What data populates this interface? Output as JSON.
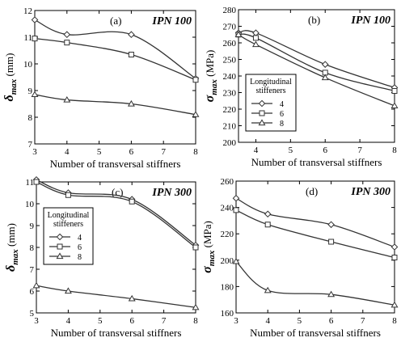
{
  "chart_data": [
    {
      "type": "line",
      "panel_label": "(a)",
      "title": "IPN 100",
      "xlabel": "Number of transversal stiffners",
      "ylabel_sym": "δ",
      "ylabel_sub": "max",
      "ylabel_rest": " (mm)",
      "xlim": [
        3,
        8
      ],
      "ylim": [
        7,
        12
      ],
      "xticks": [
        "3",
        "4",
        "5",
        "6",
        "7",
        "8"
      ],
      "yticks": [
        "7",
        "8",
        "9",
        "10",
        "11",
        "12"
      ],
      "series": [
        {
          "marker": "diamond",
          "x": [
            3,
            4,
            6,
            8
          ],
          "y": [
            11.65,
            11.1,
            11.1,
            9.45
          ]
        },
        {
          "marker": "square",
          "x": [
            3,
            4,
            6,
            8
          ],
          "y": [
            10.95,
            10.8,
            10.35,
            9.4
          ]
        },
        {
          "marker": "triangle",
          "x": [
            3,
            4,
            6,
            8
          ],
          "y": [
            8.85,
            8.65,
            8.5,
            8.1
          ]
        }
      ]
    },
    {
      "type": "line",
      "panel_label": "(b)",
      "title": "IPN 100",
      "xlabel": "Number of transversal stiffners",
      "ylabel_sym": "σ",
      "ylabel_sub": "max",
      "ylabel_rest": " (MPa)",
      "xlim": [
        3.5,
        8
      ],
      "ylim": [
        200,
        280
      ],
      "xticks": [
        "4",
        "5",
        "6",
        "7",
        "8"
      ],
      "yticks": [
        "200",
        "210",
        "220",
        "230",
        "240",
        "250",
        "260",
        "270",
        "280"
      ],
      "legend": {
        "title_lines": [
          "Longitudinal",
          "stiffeners"
        ],
        "items": [
          "4",
          "6",
          "8"
        ],
        "placement": "left-middle"
      },
      "series": [
        {
          "name": "4",
          "marker": "diamond",
          "x": [
            3.5,
            4,
            6,
            8
          ],
          "y": [
            266,
            266,
            247,
            233
          ]
        },
        {
          "name": "6",
          "marker": "square",
          "x": [
            3.5,
            4,
            6,
            8
          ],
          "y": [
            265,
            263,
            242,
            231
          ]
        },
        {
          "name": "8",
          "marker": "triangle",
          "x": [
            3.5,
            4,
            6,
            8
          ],
          "y": [
            265,
            259,
            239,
            222
          ]
        }
      ]
    },
    {
      "type": "line",
      "panel_label": "(c)",
      "title": "IPN 300",
      "xlabel": "Number of transversal stiffners",
      "ylabel_sym": "δ",
      "ylabel_sub": "max",
      "ylabel_rest": " (mm)",
      "xlim": [
        3,
        8
      ],
      "ylim": [
        5,
        11
      ],
      "xticks": [
        "3",
        "4",
        "5",
        "6",
        "7",
        "8"
      ],
      "yticks": [
        "5",
        "6",
        "7",
        "8",
        "9",
        "10",
        "11"
      ],
      "legend": {
        "title_lines": [
          "Longitudinal",
          "stiffeners"
        ],
        "items": [
          "4",
          "6",
          "8"
        ],
        "placement": "upper-left"
      },
      "series": [
        {
          "name": "4",
          "marker": "diamond",
          "x": [
            3,
            4,
            6,
            8
          ],
          "y": [
            11.1,
            10.5,
            10.2,
            8.1
          ]
        },
        {
          "name": "6",
          "marker": "square",
          "x": [
            3,
            4,
            6,
            8
          ],
          "y": [
            11.0,
            10.4,
            10.1,
            8.0
          ]
        },
        {
          "name": "8",
          "marker": "triangle",
          "x": [
            3,
            4,
            6,
            8
          ],
          "y": [
            6.25,
            6.0,
            5.65,
            5.25
          ]
        }
      ]
    },
    {
      "type": "line",
      "panel_label": "(d)",
      "title": "IPN 300",
      "xlabel": "Number of transversal stiffners",
      "ylabel_sym": "σ",
      "ylabel_sub": "max",
      "ylabel_rest": " (MPa)",
      "xlim": [
        3,
        8
      ],
      "ylim": [
        160,
        260
      ],
      "xticks": [
        "3",
        "4",
        "5",
        "6",
        "7",
        "8"
      ],
      "yticks": [
        "160",
        "180",
        "200",
        "220",
        "240",
        "260"
      ],
      "series": [
        {
          "marker": "diamond",
          "x": [
            3,
            4,
            6,
            8
          ],
          "y": [
            247,
            235,
            227,
            210
          ]
        },
        {
          "marker": "square",
          "x": [
            3,
            4,
            6,
            8
          ],
          "y": [
            238,
            227,
            214,
            202
          ]
        },
        {
          "marker": "triangle",
          "x": [
            3,
            4,
            6,
            8
          ],
          "y": [
            199,
            177,
            174,
            166
          ]
        }
      ]
    }
  ]
}
